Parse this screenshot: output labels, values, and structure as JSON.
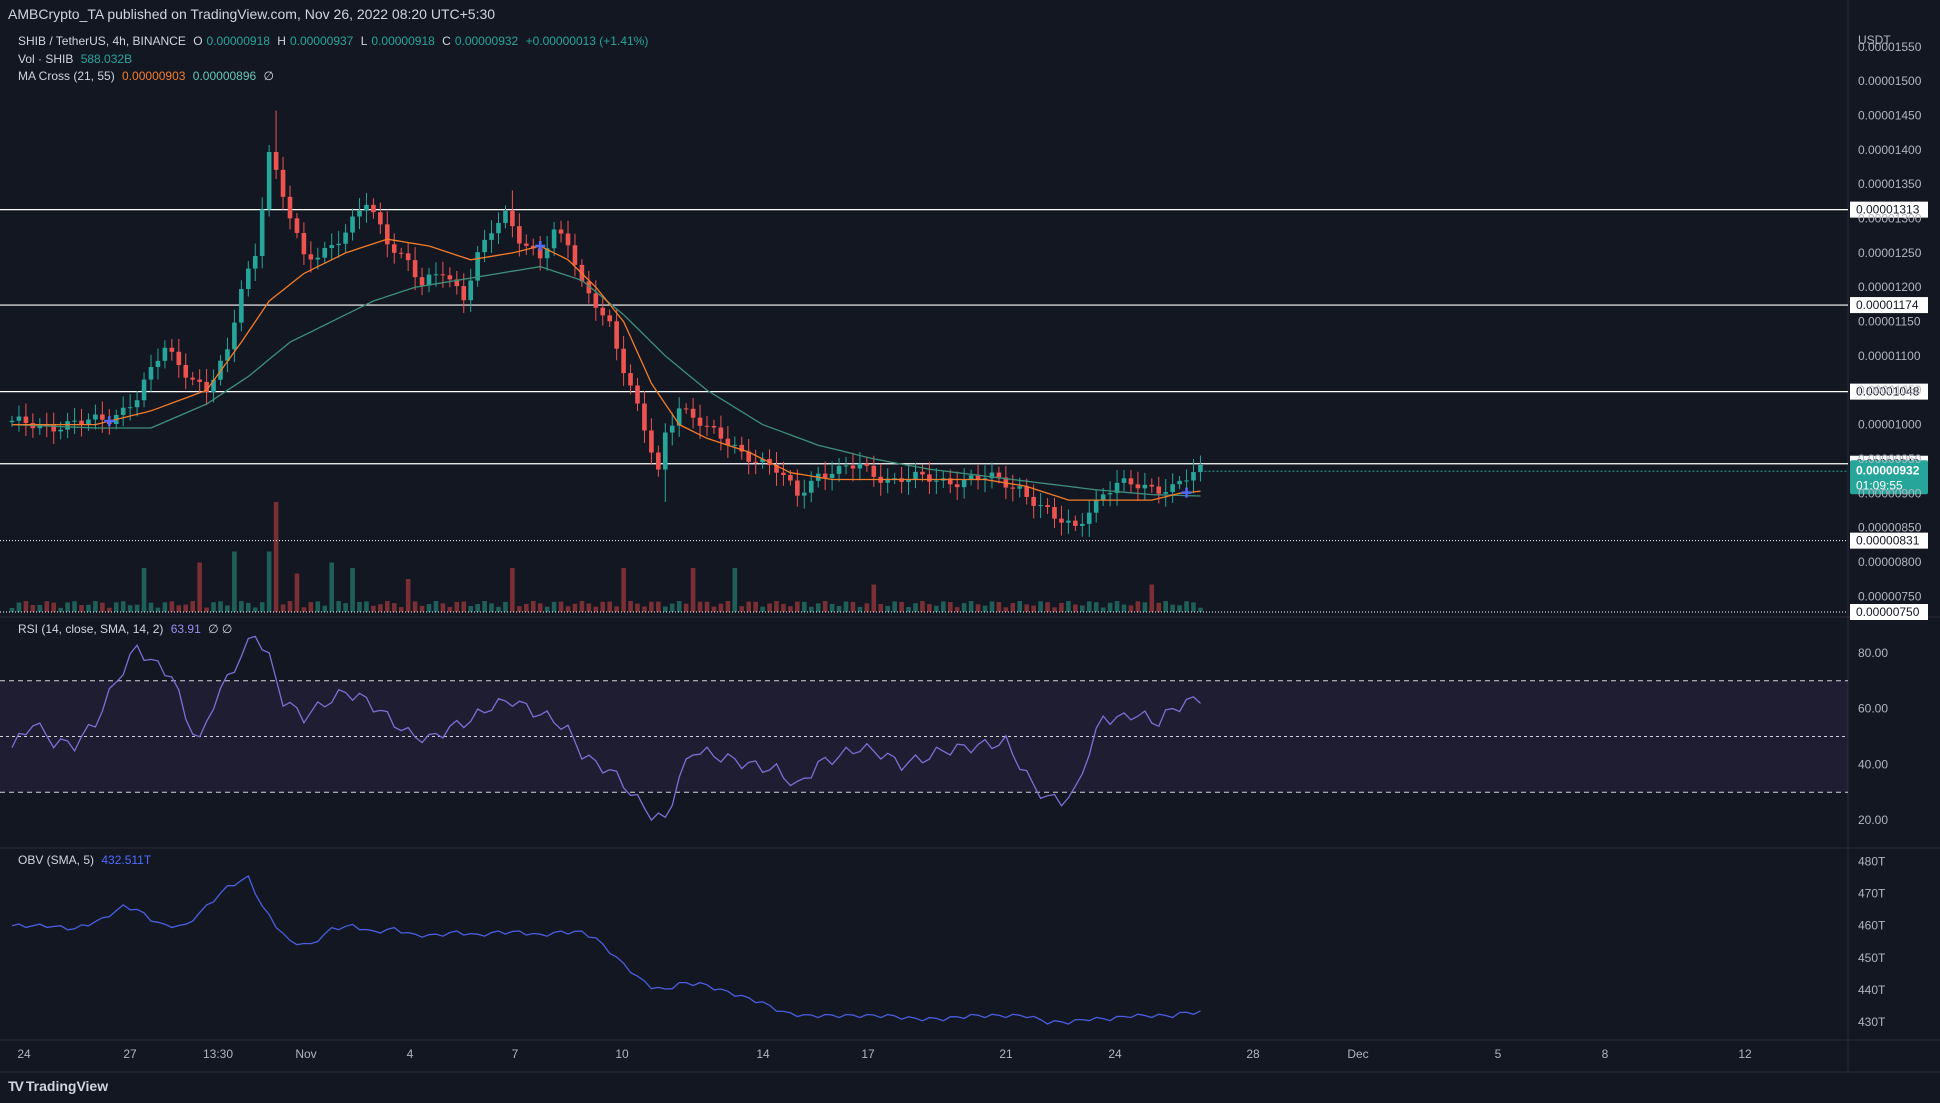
{
  "header": {
    "published": "AMBCrypto_TA published on TradingView.com, Nov 26, 2022 08:20 UTC+5:30"
  },
  "legend": {
    "symbol": "SHIB / TetherUS, 4h, BINANCE",
    "o_label": "O",
    "o": "0.00000918",
    "h_label": "H",
    "h": "0.00000937",
    "l_label": "L",
    "l": "0.00000918",
    "c_label": "C",
    "c": "0.00000932",
    "change": "+0.00000013 (+1.41%)",
    "vol_label": "Vol · SHIB",
    "vol": "588.032B",
    "ma_label": "MA Cross (21, 55)",
    "ma_fast": "0.00000903",
    "ma_slow": "0.00000896",
    "ma_extra": "∅",
    "rsi_label": "RSI (14, close, SMA, 14, 2)",
    "rsi": "63.91",
    "rsi_extra": "∅ ∅",
    "obv_label": "OBV (SMA, 5)",
    "obv": "432.511T"
  },
  "footer": {
    "brand": "TradingView",
    "logo": "TV"
  },
  "colors": {
    "background": "#131722",
    "up": "#26a69a",
    "down": "#ef5350",
    "ma_fast": "#f57c28",
    "ma_slow": "#3f8f7a",
    "rsi": "#7e6ed6",
    "obv": "#4a5ee0",
    "hline": "#ffffff",
    "price_badge": "#26a69a"
  },
  "chart_data": [
    {
      "type": "candlestick",
      "title": "SHIB / TetherUS, 4h, BINANCE",
      "ylabel": "USDT",
      "ylim": [
        7.3e-06,
        1.56e-05
      ],
      "yticks": [
        "0.00001550",
        "0.00001500",
        "0.00001450",
        "0.00001400",
        "0.00001350",
        "0.00001300",
        "0.00001250",
        "0.00001200",
        "0.00001150",
        "0.00001100",
        "0.00001050",
        "0.00001000",
        "0.00000950",
        "0.00000900",
        "0.00000850",
        "0.00000800",
        "0.00000750"
      ],
      "xticks": [
        "24",
        "27",
        "13:30",
        "Nov",
        "4",
        "7",
        "10",
        "14",
        "17",
        "21",
        "24",
        "28",
        "Dec",
        "5",
        "8",
        "12"
      ],
      "horizontal_levels": [
        "0.00001313",
        "0.00001174",
        "0.00001048",
        "0.00000943"
      ],
      "support_level": "0.00000831",
      "last_price": "0.00000932",
      "countdown": "01:09:55",
      "volume_bottom_label": "0.00000750",
      "closes_anchors": [
        [
          0,
          1e-05
        ],
        [
          10,
          1e-05
        ],
        [
          14,
          1.01e-05
        ],
        [
          18,
          1.04e-05
        ],
        [
          22,
          1.11e-05
        ],
        [
          25,
          1.08e-05
        ],
        [
          28,
          1.05e-05
        ],
        [
          31,
          1.1e-05
        ],
        [
          33,
          1.2e-05
        ],
        [
          35,
          1.25e-05
        ],
        [
          37,
          1.4e-05
        ],
        [
          39,
          1.33e-05
        ],
        [
          42,
          1.24e-05
        ],
        [
          44,
          1.25e-05
        ],
        [
          48,
          1.28e-05
        ],
        [
          51,
          1.32e-05
        ],
        [
          54,
          1.27e-05
        ],
        [
          57,
          1.24e-05
        ],
        [
          59,
          1.2e-05
        ],
        [
          62,
          1.22e-05
        ],
        [
          65,
          1.19e-05
        ],
        [
          67,
          1.25e-05
        ],
        [
          69,
          1.28e-05
        ],
        [
          71,
          1.3e-05
        ],
        [
          73,
          1.27e-05
        ],
        [
          76,
          1.25e-05
        ],
        [
          78,
          1.28e-05
        ],
        [
          80,
          1.26e-05
        ],
        [
          82,
          1.2e-05
        ],
        [
          84,
          1.18e-05
        ],
        [
          86,
          1.15e-05
        ],
        [
          88,
          1.08e-05
        ],
        [
          90,
          1.02e-05
        ],
        [
          92,
          9.6e-06
        ],
        [
          93,
          9.3e-06
        ],
        [
          94,
          9.9e-06
        ],
        [
          96,
          1.03e-05
        ],
        [
          98,
          1.01e-05
        ],
        [
          100,
          9.9e-06
        ],
        [
          104,
          9.7e-06
        ],
        [
          107,
          9.5e-06
        ],
        [
          110,
          9.3e-06
        ],
        [
          113,
          9e-06
        ],
        [
          116,
          9.3e-06
        ],
        [
          119,
          9.3e-06
        ],
        [
          122,
          9.4e-06
        ],
        [
          124,
          9.3e-06
        ],
        [
          127,
          9.2e-06
        ],
        [
          130,
          9.2e-06
        ],
        [
          134,
          9.2e-06
        ],
        [
          138,
          9.2e-06
        ],
        [
          141,
          9.2e-06
        ],
        [
          145,
          9.1e-06
        ],
        [
          148,
          8.8e-06
        ],
        [
          150,
          8.6e-06
        ],
        [
          153,
          8.5e-06
        ],
        [
          155,
          8.8e-06
        ],
        [
          157,
          9e-06
        ],
        [
          159,
          9.1e-06
        ],
        [
          162,
          9.1e-06
        ],
        [
          164,
          9.1e-06
        ],
        [
          167,
          9.1e-06
        ],
        [
          169,
          9.2e-06
        ],
        [
          171,
          9.3e-06
        ]
      ],
      "ma_fast_anchors": [
        [
          0,
          1e-05
        ],
        [
          12,
          1e-05
        ],
        [
          20,
          1.02e-05
        ],
        [
          28,
          1.05e-05
        ],
        [
          33,
          1.12e-05
        ],
        [
          37,
          1.18e-05
        ],
        [
          42,
          1.22e-05
        ],
        [
          48,
          1.25e-05
        ],
        [
          54,
          1.27e-05
        ],
        [
          60,
          1.26e-05
        ],
        [
          66,
          1.24e-05
        ],
        [
          72,
          1.25e-05
        ],
        [
          76,
          1.26e-05
        ],
        [
          80,
          1.24e-05
        ],
        [
          84,
          1.2e-05
        ],
        [
          88,
          1.15e-05
        ],
        [
          92,
          1.06e-05
        ],
        [
          96,
          1e-05
        ],
        [
          100,
          9.8e-06
        ],
        [
          106,
          9.6e-06
        ],
        [
          112,
          9.3e-06
        ],
        [
          118,
          9.2e-06
        ],
        [
          124,
          9.2e-06
        ],
        [
          132,
          9.2e-06
        ],
        [
          140,
          9.2e-06
        ],
        [
          146,
          9.1e-06
        ],
        [
          152,
          8.9e-06
        ],
        [
          158,
          8.9e-06
        ],
        [
          164,
          8.9e-06
        ],
        [
          168,
          9e-06
        ],
        [
          171,
          9.03e-06
        ]
      ],
      "ma_slow_anchors": [
        [
          0,
          1e-05
        ],
        [
          12,
          9.95e-06
        ],
        [
          20,
          9.95e-06
        ],
        [
          28,
          1.03e-05
        ],
        [
          34,
          1.07e-05
        ],
        [
          40,
          1.12e-05
        ],
        [
          46,
          1.15e-05
        ],
        [
          52,
          1.18e-05
        ],
        [
          58,
          1.2e-05
        ],
        [
          64,
          1.21e-05
        ],
        [
          70,
          1.22e-05
        ],
        [
          76,
          1.23e-05
        ],
        [
          82,
          1.21e-05
        ],
        [
          88,
          1.16e-05
        ],
        [
          94,
          1.1e-05
        ],
        [
          100,
          1.05e-05
        ],
        [
          108,
          1e-05
        ],
        [
          116,
          9.7e-06
        ],
        [
          124,
          9.5e-06
        ],
        [
          132,
          9.35e-06
        ],
        [
          140,
          9.25e-06
        ],
        [
          148,
          9.15e-06
        ],
        [
          156,
          9.05e-06
        ],
        [
          164,
          8.98e-06
        ],
        [
          171,
          8.96e-06
        ]
      ],
      "volume_spikes": [
        [
          19,
          0.4
        ],
        [
          27,
          0.45
        ],
        [
          32,
          0.55
        ],
        [
          37,
          0.55
        ],
        [
          38,
          1.0
        ],
        [
          41,
          0.35
        ],
        [
          46,
          0.45
        ],
        [
          49,
          0.4
        ],
        [
          57,
          0.3
        ],
        [
          72,
          0.4
        ],
        [
          88,
          0.4
        ],
        [
          98,
          0.4
        ],
        [
          104,
          0.4
        ],
        [
          124,
          0.25
        ],
        [
          164,
          0.25
        ]
      ]
    },
    {
      "type": "line",
      "title": "RSI (14, close, SMA, 14, 2)",
      "ylim": [
        10,
        90
      ],
      "yticks": [
        "80.00",
        "60.00",
        "40.00",
        "20.00"
      ],
      "bands": [
        30,
        50,
        70
      ],
      "anchors": [
        [
          0,
          46
        ],
        [
          3,
          55
        ],
        [
          6,
          48
        ],
        [
          9,
          47
        ],
        [
          12,
          55
        ],
        [
          15,
          70
        ],
        [
          18,
          82
        ],
        [
          20,
          77
        ],
        [
          23,
          72
        ],
        [
          25,
          57
        ],
        [
          27,
          48
        ],
        [
          29,
          62
        ],
        [
          32,
          75
        ],
        [
          35,
          87
        ],
        [
          37,
          78
        ],
        [
          39,
          63
        ],
        [
          42,
          57
        ],
        [
          45,
          62
        ],
        [
          48,
          66
        ],
        [
          51,
          63
        ],
        [
          54,
          57
        ],
        [
          57,
          51
        ],
        [
          60,
          49
        ],
        [
          63,
          53
        ],
        [
          66,
          56
        ],
        [
          69,
          61
        ],
        [
          72,
          63
        ],
        [
          75,
          59
        ],
        [
          78,
          56
        ],
        [
          80,
          52
        ],
        [
          82,
          44
        ],
        [
          84,
          40
        ],
        [
          86,
          38
        ],
        [
          88,
          33
        ],
        [
          90,
          27
        ],
        [
          92,
          22
        ],
        [
          94,
          20
        ],
        [
          96,
          35
        ],
        [
          98,
          45
        ],
        [
          100,
          44
        ],
        [
          103,
          42
        ],
        [
          106,
          40
        ],
        [
          110,
          38
        ],
        [
          113,
          32
        ],
        [
          116,
          40
        ],
        [
          119,
          43
        ],
        [
          122,
          46
        ],
        [
          125,
          44
        ],
        [
          128,
          40
        ],
        [
          131,
          42
        ],
        [
          134,
          45
        ],
        [
          137,
          46
        ],
        [
          140,
          47
        ],
        [
          143,
          48
        ],
        [
          145,
          40
        ],
        [
          147,
          32
        ],
        [
          149,
          28
        ],
        [
          151,
          27
        ],
        [
          153,
          30
        ],
        [
          155,
          45
        ],
        [
          157,
          57
        ],
        [
          159,
          56
        ],
        [
          161,
          58
        ],
        [
          163,
          57
        ],
        [
          165,
          55
        ],
        [
          167,
          60
        ],
        [
          169,
          62
        ],
        [
          171,
          64
        ]
      ]
    },
    {
      "type": "line",
      "title": "OBV (SMA, 5)",
      "ylim": [
        426,
        482
      ],
      "yticks": [
        "480T",
        "470T",
        "460T",
        "450T",
        "440T",
        "430T"
      ],
      "anchors": [
        [
          0,
          460
        ],
        [
          5,
          460
        ],
        [
          9,
          459
        ],
        [
          13,
          462
        ],
        [
          16,
          466
        ],
        [
          18,
          465
        ],
        [
          20,
          462
        ],
        [
          22,
          460
        ],
        [
          25,
          460
        ],
        [
          28,
          466
        ],
        [
          31,
          472
        ],
        [
          34,
          475
        ],
        [
          36,
          466
        ],
        [
          38,
          460
        ],
        [
          40,
          455
        ],
        [
          43,
          454
        ],
        [
          46,
          459
        ],
        [
          49,
          460
        ],
        [
          52,
          458
        ],
        [
          55,
          459
        ],
        [
          58,
          457
        ],
        [
          61,
          457
        ],
        [
          64,
          458
        ],
        [
          67,
          457
        ],
        [
          70,
          458
        ],
        [
          73,
          458
        ],
        [
          76,
          457
        ],
        [
          79,
          458
        ],
        [
          82,
          458
        ],
        [
          84,
          456
        ],
        [
          86,
          452
        ],
        [
          88,
          448
        ],
        [
          90,
          444
        ],
        [
          92,
          441
        ],
        [
          94,
          440
        ],
        [
          96,
          442
        ],
        [
          99,
          442
        ],
        [
          102,
          440
        ],
        [
          105,
          438
        ],
        [
          108,
          436
        ],
        [
          111,
          433
        ],
        [
          114,
          432
        ],
        [
          118,
          432
        ],
        [
          122,
          432
        ],
        [
          126,
          432
        ],
        [
          130,
          431
        ],
        [
          134,
          431
        ],
        [
          138,
          432
        ],
        [
          142,
          432
        ],
        [
          146,
          432
        ],
        [
          149,
          430
        ],
        [
          152,
          430
        ],
        [
          155,
          431
        ],
        [
          158,
          431
        ],
        [
          161,
          432
        ],
        [
          164,
          432
        ],
        [
          167,
          432
        ],
        [
          169,
          433
        ],
        [
          171,
          433
        ]
      ]
    }
  ]
}
